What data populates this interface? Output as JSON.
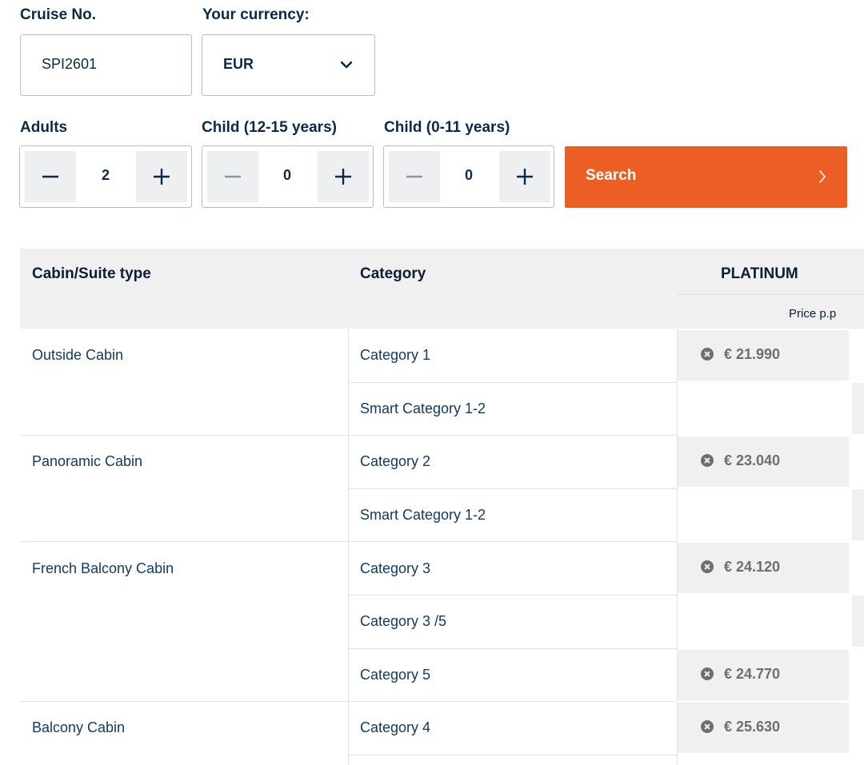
{
  "form": {
    "cruise_label": "Cruise No.",
    "cruise_value": "SPI2601",
    "currency_label": "Your currency:",
    "currency_value": "EUR",
    "adults_label": "Adults",
    "adults_value": "2",
    "child_older_label": "Child (12-15 years)",
    "child_older_value": "0",
    "child_younger_label": "Child (0-11 years)",
    "child_younger_value": "0",
    "search_label": "Search"
  },
  "table": {
    "col_cabin": "Cabin/Suite type",
    "col_category": "Category",
    "col_tier": "PLATINUM",
    "price_sub": "Price p.p",
    "rows": [
      {
        "cabin": "Outside Cabin",
        "category": "Category 1",
        "price": "€ 21.990"
      },
      {
        "cabin": "",
        "category": "Smart Category 1-2",
        "price": ""
      },
      {
        "cabin": "Panoramic Cabin",
        "category": "Category 2",
        "price": "€ 23.040"
      },
      {
        "cabin": "",
        "category": "Smart Category 1-2",
        "price": ""
      },
      {
        "cabin": "French Balcony Cabin",
        "category": "Category 3",
        "price": "€ 24.120"
      },
      {
        "cabin": "",
        "category": "Category 3 /5",
        "price": ""
      },
      {
        "cabin": "",
        "category": "Category 5",
        "price": "€ 24.770"
      },
      {
        "cabin": "Balcony Cabin",
        "category": "Category 4",
        "price": "€ 25.630"
      }
    ]
  },
  "colors": {
    "accent": "#ec5e23",
    "text": "#0b2a4a",
    "link": "#123a66",
    "header_bg": "#f0f0f0"
  }
}
